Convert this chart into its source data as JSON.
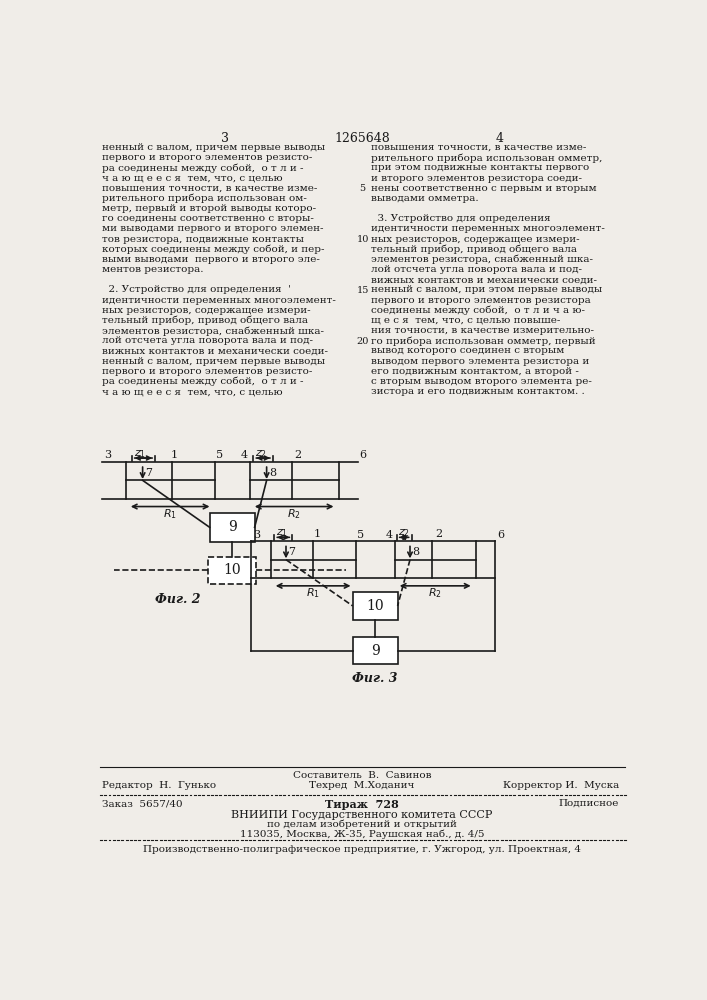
{
  "page_number_left": "3",
  "patent_number": "1265648",
  "page_number_right": "4",
  "background_color": "#f0ede8",
  "text_color": "#1a1a1a",
  "col1_text": [
    "ненный с валом, причем первые выводы",
    "первого и второго элементов резисто-",
    "ра соединены между собой,  о т л и -",
    "ч а ю щ е е с я  тем, что, с целью",
    "повышения точности, в качестве изме-",
    "рительного прибора использован ом-",
    "метр, первый и второй выводы которо-",
    "го соединены соответственно с вторы-",
    "ми выводами первого и второго элемен-",
    "тов резистора, подвижные контакты",
    "которых соединены между собой, и пер-",
    "выми выводами  первого и второго эле-",
    "ментов резистора.",
    "",
    "  2. Устройство для определения  '",
    "идентичности переменных многоэлемент-",
    "ных резисторов, содержащее измери-",
    "тельный прибор, привод общего вала",
    "элементов резистора, снабженный шка-",
    "лой отсчета угла поворота вала и под-",
    "вижных контактов и механически соеди-",
    "ненный с валом, причем первые выводы",
    "первого и второго элементов резисто-",
    "ра соединены между собой,  о т л и -",
    "ч а ю щ е е с я  тем, что, с целью"
  ],
  "col2_text": [
    "повышения точности, в качестве изме-",
    "рительного прибора использован омметр,",
    "при этом подвижные контакты первого",
    "и второго элементов резистора соеди-",
    "нены соответственно с первым и вторым",
    "выводами омметра.",
    "",
    "  3. Устройство для определения",
    "идентичности переменных многоэлемент-",
    "ных резисторов, содержащее измери-",
    "тельный прибор, привод общего вала",
    "элементов резистора, снабженный шка-",
    "лой отсчета угла поворота вала и под-",
    "вижных контактов и механически соеди-",
    "ненный с валом, при этом первые выводы",
    "первого и второго элементов резистора",
    "соединены между собой,  о т л и ч а ю-",
    "щ е с я  тем, что, с целью повыше-",
    "ния точности, в качестве измерительно-",
    "го прибора использован омметр, первый",
    "вывод которого соединен с вторым",
    "выводом первого элемента резистора и",
    "его подвижным контактом, а второй -",
    "с вторым выводом второго элемента ре-",
    "зистора и его подвижным контактом. ."
  ],
  "fig2_label": "Фиг. 2",
  "fig3_label": "Фиг. 3",
  "footer_sestavitel": "Составитель  В.  Савинов",
  "footer_redaktor": "Редактор  Н.  Гунько",
  "footer_tehred": "Техред  М.Ходанич",
  "footer_korrektor": "Корректор И.  Муска",
  "footer_zakaz": "Заказ  5657/40",
  "footer_tirazh": "Тираж  728",
  "footer_podpisnoe": "Подписное",
  "footer_vniip1": "ВНИИПИ Государственного комитета СССР",
  "footer_vniip2": "по делам изобретений и открытий",
  "footer_vniip3": "113035, Москва, Ж-35, Раушская наб., д. 4/5",
  "footer_tip": "Производственно-полиграфическое предприятие, г. Ужгород, ул. Проектная, 4"
}
